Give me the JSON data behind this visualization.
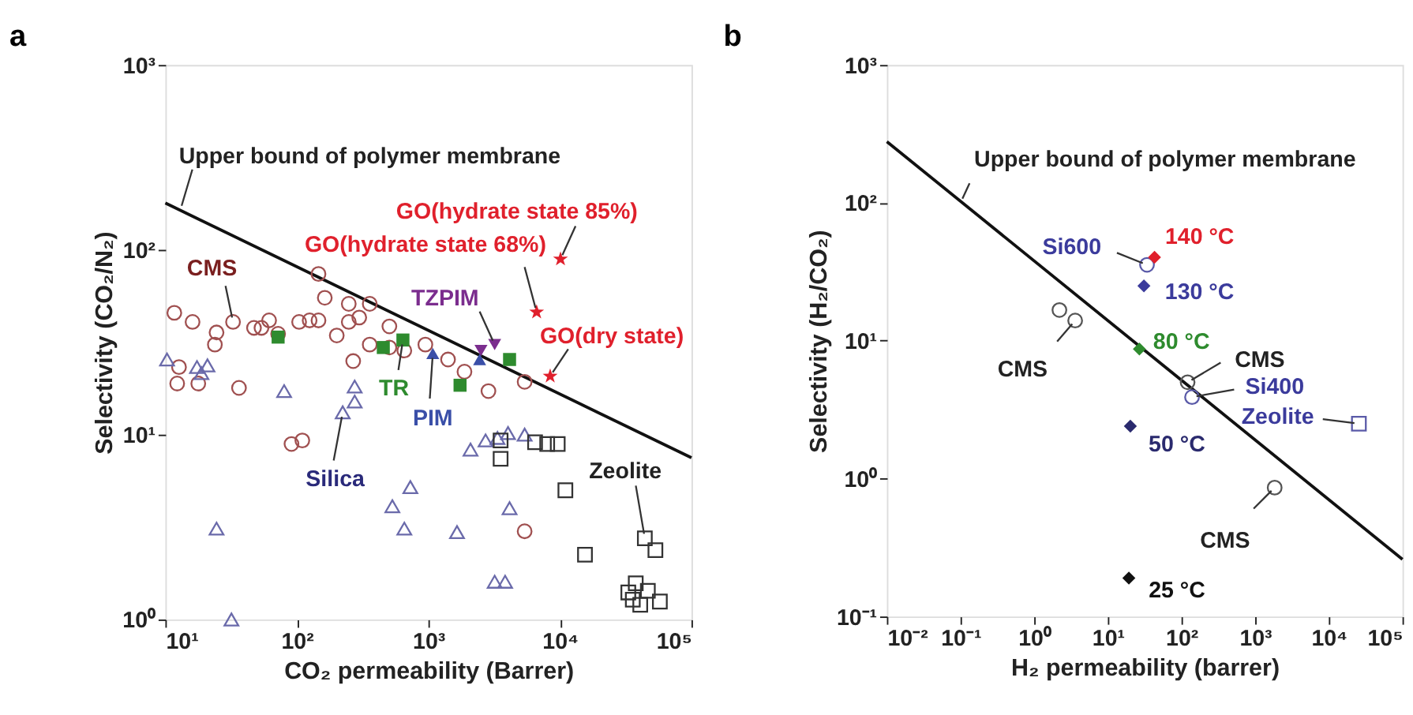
{
  "chart_data": [
    {
      "type": "scatter",
      "title": "a",
      "xlabel": "CO₂ permeability (Barrer)",
      "ylabel": "Selectivity (CO₂/N₂)",
      "log": "xy",
      "xlim": [
        10,
        100000
      ],
      "ylim": [
        1,
        1000
      ],
      "xticks": [
        {
          "value": 10,
          "label": "10¹"
        },
        {
          "value": 100,
          "label": "10²"
        },
        {
          "value": 1000,
          "label": "10³"
        },
        {
          "value": 10000,
          "label": "10⁴"
        },
        {
          "value": 100000,
          "label": "10⁵"
        }
      ],
      "yticks": [
        {
          "value": 1,
          "label": "10⁰"
        },
        {
          "value": 10,
          "label": "10¹"
        },
        {
          "value": 100,
          "label": "10²"
        },
        {
          "value": 1000,
          "label": "10³"
        }
      ],
      "series": [
        {
          "type": "line",
          "color": "#111111",
          "marker": "none",
          "x": [
            10,
            100000
          ],
          "values": [
            179,
            7.5
          ]
        },
        {
          "type": "scatter",
          "color": "#a05050",
          "marker": "circle",
          "x": [
            11.7,
            16.1,
            12.7,
            12.3,
            17.8,
            24.5,
            23.8,
            32.7,
            36.3,
            47.2,
            53.8,
            61.5,
            72,
            104,
            125,
            146,
            146,
            163,
            201,
            248,
            248,
            298,
            358,
            268,
            358,
            505,
            505,
            656,
            948,
            1410,
            91,
            110,
            1880,
            2860,
            5390,
            5390
          ],
          "values": [
            45.6,
            40.7,
            23.2,
            18.9,
            18.9,
            35.7,
            30.7,
            40.7,
            17.9,
            37.8,
            37.8,
            41.5,
            35.1,
            40.7,
            41.5,
            41.5,
            74,
            55,
            34.4,
            51,
            40.7,
            43,
            51,
            25,
            30.7,
            38.5,
            29.6,
            28.5,
            30.7,
            25.5,
            8.9,
            9.3,
            21.9,
            17.2,
            19.3,
            3.0
          ]
        },
        {
          "type": "scatter",
          "color": "#6a6aaa",
          "marker": "triangle",
          "x": [
            10.3,
            17.4,
            20.9,
            18.8,
            80,
            275,
            275,
            223,
            729,
            532,
            656,
            24.5,
            1650,
            31.8,
            2090,
            2720,
            3350,
            4030,
            5390,
            4140,
            3190,
            3830
          ],
          "values": [
            25.5,
            23.2,
            23.7,
            21.5,
            17.2,
            18.2,
            15.1,
            13.2,
            5.2,
            4.1,
            3.1,
            3.1,
            2.97,
            1.0,
            8.3,
            9.3,
            9.6,
            10.2,
            10.0,
            4.0,
            1.6,
            1.6
          ]
        },
        {
          "type": "scatter",
          "color": "#333333",
          "marker": "square",
          "x": [
            3540,
            3540,
            6470,
            8000,
            9620,
            11000,
            44200,
            53200,
            15500,
            37700,
            46600,
            33100,
            40800,
            57500,
            35800
          ],
          "values": [
            9.3,
            7.4,
            9.1,
            8.9,
            8.9,
            5.0,
            2.75,
            2.37,
            2.24,
            1.57,
            1.43,
            1.4,
            1.2,
            1.25,
            1.28
          ]
        },
        {
          "type": "scatter",
          "color": "#2e8b2e",
          "marker": "square",
          "x": [
            72,
            454,
            640,
            1740,
            4140
          ],
          "values": [
            33.7,
            29.6,
            32.5,
            18.5,
            25.5
          ]
        },
        {
          "type": "scatter",
          "color": "#3a4fa8",
          "marker": "triangle",
          "x": [
            1080,
            2450
          ],
          "values": [
            27.5,
            25.5
          ]
        },
        {
          "type": "scatter",
          "color": "#7b2d8e",
          "marker": "triangle-down",
          "x": [
            2510,
            3190
          ],
          "values": [
            28.5,
            30.7
          ]
        },
        {
          "type": "scatter",
          "color": "#e0202c",
          "marker": "star",
          "x": [
            10100,
            6650,
            8430
          ],
          "values": [
            89,
            46,
            20.7
          ]
        }
      ],
      "annotations": [
        {
          "text": "Upper bound of polymer membrane",
          "x": 13,
          "y": 164
        },
        {
          "text": "GO(hydrate state 85%)",
          "x": 10100,
          "y": 89
        },
        {
          "text": "GO(hydrate state 68%)",
          "x": 6650,
          "y": 46
        },
        {
          "text": "GO(dry state)",
          "x": 8430,
          "y": 20.7
        },
        {
          "text": "CMS",
          "x": 32.7,
          "y": 40.7
        },
        {
          "text": "TZPIM",
          "x": 3190,
          "y": 30.7
        },
        {
          "text": "TR",
          "x": 640,
          "y": 32.5
        },
        {
          "text": "PIM",
          "x": 1080,
          "y": 27.5
        },
        {
          "text": "Silica",
          "x": 223,
          "y": 13.2
        },
        {
          "text": "Zeolite",
          "x": 44200,
          "y": 2.75
        }
      ]
    },
    {
      "type": "scatter",
      "title": "b",
      "xlabel": "H₂ permeability (barrer)",
      "ylabel": "Selectivity (H₂/CO₂)",
      "log": "xy",
      "xlim": [
        0.01,
        100000
      ],
      "ylim": [
        0.1,
        1000
      ],
      "xticks": [
        {
          "value": 0.01,
          "label": "10⁻²"
        },
        {
          "value": 0.1,
          "label": "10⁻¹"
        },
        {
          "value": 1,
          "label": "10⁰"
        },
        {
          "value": 10,
          "label": "10¹"
        },
        {
          "value": 100,
          "label": "10²"
        },
        {
          "value": 1000,
          "label": "10³"
        },
        {
          "value": 10000,
          "label": "10⁴"
        },
        {
          "value": 100000,
          "label": "10⁵"
        }
      ],
      "yticks": [
        {
          "value": 0.1,
          "label": "10⁻¹"
        },
        {
          "value": 1,
          "label": "10⁰"
        },
        {
          "value": 10,
          "label": "10¹"
        },
        {
          "value": 100,
          "label": "10²"
        },
        {
          "value": 1000,
          "label": "10³"
        }
      ],
      "series": [
        {
          "type": "line",
          "color": "#111111",
          "marker": "none",
          "x": [
            0.01,
            100000
          ],
          "values": [
            278,
            0.26
          ]
        },
        {
          "type": "scatter",
          "color": "#555555",
          "marker": "circle",
          "x": [
            2.2,
            3.6,
            121,
            1840
          ],
          "values": [
            16.7,
            14,
            5.0,
            0.86
          ]
        },
        {
          "type": "scatter",
          "color": "#5a5aa8",
          "marker": "circle",
          "x": [
            34,
            139
          ],
          "values": [
            35.5,
            3.9
          ]
        },
        {
          "type": "scatter",
          "color": "#5a5aa8",
          "marker": "square",
          "x": [
            25600
          ],
          "values": [
            2.5
          ]
        },
        {
          "type": "scatter",
          "color": "#e0202c",
          "marker": "diamond",
          "x": [
            43
          ],
          "values": [
            40.3
          ]
        },
        {
          "type": "scatter",
          "color": "#3b3b9c",
          "marker": "diamond",
          "x": [
            30.9
          ],
          "values": [
            25
          ]
        },
        {
          "type": "scatter",
          "color": "#2e8b2e",
          "marker": "diamond",
          "x": [
            26.8
          ],
          "values": [
            8.7
          ]
        },
        {
          "type": "scatter",
          "color": "#2a2a6e",
          "marker": "diamond",
          "x": [
            20.2
          ],
          "values": [
            2.4
          ]
        },
        {
          "type": "scatter",
          "color": "#111111",
          "marker": "diamond",
          "x": [
            19.3
          ],
          "values": [
            0.19
          ]
        }
      ],
      "annotations": [
        {
          "text": "Upper bound of polymer membrane",
          "x": 0.1,
          "y": 100
        },
        {
          "text": "Si600",
          "x": 34,
          "y": 35.5
        },
        {
          "text": "140 °C",
          "x": 43,
          "y": 40.3
        },
        {
          "text": "130 °C",
          "x": 30.9,
          "y": 25
        },
        {
          "text": "CMS",
          "x": 3.6,
          "y": 14
        },
        {
          "text": "80 °C",
          "x": 26.8,
          "y": 8.7
        },
        {
          "text": "CMS",
          "x": 121,
          "y": 5.0
        },
        {
          "text": "Si400",
          "x": 139,
          "y": 3.9
        },
        {
          "text": "Zeolite",
          "x": 25600,
          "y": 2.5
        },
        {
          "text": "50 °C",
          "x": 20.2,
          "y": 2.4
        },
        {
          "text": "CMS",
          "x": 1840,
          "y": 0.86
        },
        {
          "text": "25 °C",
          "x": 19.3,
          "y": 0.19
        }
      ]
    }
  ]
}
